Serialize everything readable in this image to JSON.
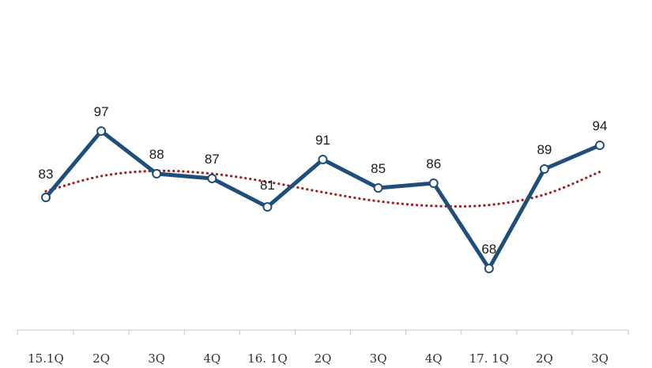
{
  "chart_data": {
    "type": "line",
    "title": "",
    "xlabel": "",
    "ylabel": "",
    "categories": [
      "15.1Q",
      "2Q",
      "3Q",
      "4Q",
      "16. 1Q",
      "2Q",
      "3Q",
      "4Q",
      "17. 1Q",
      "2Q",
      "3Q"
    ],
    "ylim": [
      55,
      115
    ],
    "grid": false,
    "legend": "none",
    "series": [
      {
        "values": [
          83,
          97,
          88,
          87,
          81,
          91,
          85,
          86,
          68,
          89,
          94
        ],
        "color": "#1f4e79",
        "style": "solid",
        "markers": "hollow-circle",
        "data_labels": true
      },
      {
        "values": [
          84.3,
          87.5,
          88.6,
          88.0,
          86.3,
          84.1,
          82.2,
          81.2,
          81.4,
          83.6,
          88.4
        ],
        "color": "#a61c1c",
        "style": "dotted",
        "markers": "none",
        "data_labels": false
      }
    ]
  }
}
